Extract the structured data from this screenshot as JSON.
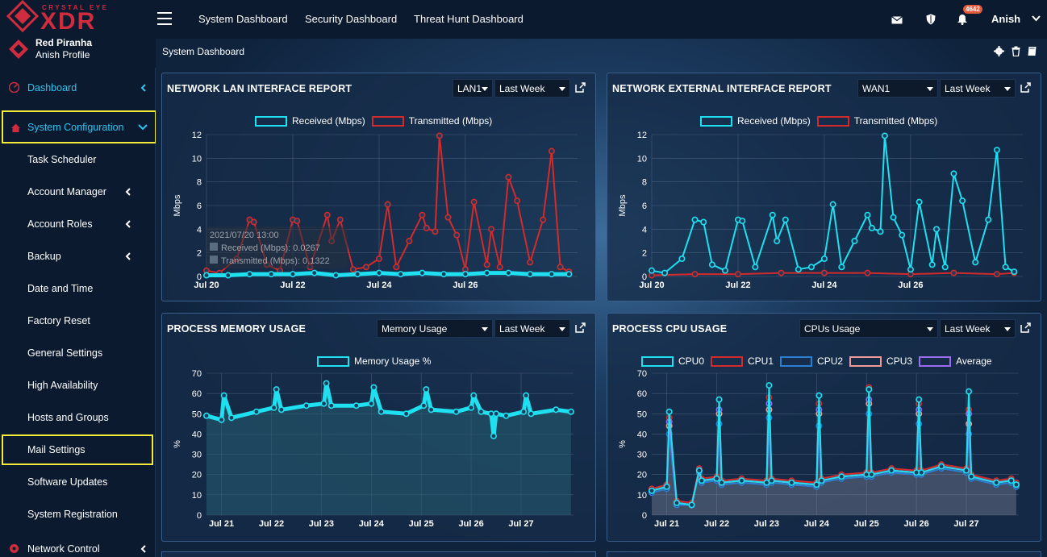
{
  "brand": {
    "tagline": "CRYSTAL EYE",
    "product": "XDR",
    "org": "Red Piranha",
    "profile": "Anish Profile"
  },
  "colors": {
    "accent": "#2fc4f2",
    "brand": "#d12b3e",
    "highlight": "#f3ea3a",
    "received": "#1ee0f0",
    "transmitted": "#d32b2b",
    "memory": "#1ee0f0",
    "cpu0": "#1ee0f0",
    "cpu1": "#d32b2b",
    "cpu2": "#2b7fd3",
    "cpu3": "#f19a9a",
    "average": "#9a6cf0"
  },
  "sidebar": {
    "dashboard": "Dashboard",
    "system_configuration": "System Configuration",
    "items": [
      "Task Scheduler",
      "Account Manager",
      "Account Roles",
      "Backup",
      "Date and Time",
      "Factory Reset",
      "General Settings",
      "High Availability",
      "Hosts and Groups",
      "Mail Settings",
      "Software Updates",
      "System Registration"
    ],
    "network_control": "Network Control"
  },
  "topbar": {
    "links": [
      "System Dashboard",
      "Security Dashboard",
      "Threat Hunt Dashboard"
    ],
    "notifications": "4642",
    "user": "Anish"
  },
  "page": {
    "title": "System Dashboard"
  },
  "panels": {
    "lan": {
      "title": "NETWORK LAN INTERFACE REPORT",
      "iface": "LAN1",
      "range": "Last Week",
      "ylabel": "Mbps",
      "legend": [
        "Received (Mbps)",
        "Transmitted (Mbps)"
      ],
      "tooltip": {
        "time": "2021/07/20 13:00",
        "received": "Received (Mbps): 0.0267",
        "transmitted": "Transmitted (Mbps): 0.1322"
      }
    },
    "ext": {
      "title": "NETWORK EXTERNAL INTERFACE REPORT",
      "iface": "WAN1",
      "range": "Last Week",
      "ylabel": "Mbps",
      "legend": [
        "Received (Mbps)",
        "Transmitted (Mbps)"
      ]
    },
    "mem": {
      "title": "PROCESS MEMORY USAGE",
      "metric": "Memory Usage",
      "range": "Last Week",
      "ylabel": "%",
      "legend": [
        "Memory Usage %"
      ]
    },
    "cpu": {
      "title": "PROCESS CPU USAGE",
      "metric": "CPUs Usage",
      "range": "Last Week",
      "ylabel": "%",
      "legend": [
        "CPU0",
        "CPU1",
        "CPU2",
        "CPU3",
        "Average"
      ]
    }
  },
  "chart_data": [
    {
      "type": "line",
      "title": "NETWORK LAN INTERFACE REPORT",
      "ylabel": "Mbps",
      "ylim": [
        0,
        12
      ],
      "yticks": [
        0,
        2,
        4,
        6,
        8,
        10,
        12
      ],
      "xlim": [
        0,
        8.6
      ],
      "xticks": [
        "Jul 20",
        "Jul 22",
        "Jul 24",
        "Jul 26"
      ],
      "xtick_pos": [
        0,
        2,
        4,
        6
      ],
      "series": [
        {
          "name": "Received (Mbps)",
          "x": [
            0,
            0.5,
            1,
            1.5,
            2,
            2.5,
            3,
            3.5,
            4,
            4.5,
            5,
            5.5,
            6,
            6.5,
            7,
            7.5,
            8,
            8.4
          ],
          "values": [
            0.1,
            0.1,
            0.2,
            0.2,
            0.2,
            0.3,
            0.1,
            0.2,
            0.3,
            0.2,
            0.3,
            0.2,
            0.2,
            0.3,
            0.3,
            0.2,
            0.2,
            0.2
          ]
        },
        {
          "name": "Transmitted (Mbps)",
          "x": [
            0,
            0.3,
            0.7,
            1.0,
            1.1,
            1.4,
            1.7,
            2.0,
            2.1,
            2.4,
            2.8,
            2.9,
            3.1,
            3.4,
            3.7,
            4.0,
            4.2,
            4.4,
            4.7,
            5.0,
            5.1,
            5.3,
            5.4,
            5.6,
            5.8,
            6.0,
            6.2,
            6.5,
            6.6,
            6.8,
            7.0,
            7.2,
            7.5,
            7.8,
            8.0,
            8.2,
            8.4
          ],
          "values": [
            0.5,
            0.3,
            1.5,
            4.8,
            4.6,
            1.0,
            0.5,
            4.8,
            4.7,
            0.8,
            5.2,
            3.0,
            4.8,
            0.6,
            0.8,
            1.5,
            6.1,
            0.8,
            3.0,
            5.2,
            4.1,
            3.8,
            11.9,
            5.0,
            3.5,
            0.6,
            6.3,
            1.0,
            4.0,
            0.8,
            8.4,
            6.4,
            1.2,
            4.8,
            10.6,
            0.8,
            0.4
          ]
        }
      ]
    },
    {
      "type": "line",
      "title": "NETWORK EXTERNAL INTERFACE REPORT",
      "ylabel": "Mbps",
      "ylim": [
        0,
        12
      ],
      "yticks": [
        0,
        2,
        4,
        6,
        8,
        10,
        12
      ],
      "xlim": [
        0,
        8.6
      ],
      "xticks": [
        "Jul 20",
        "Jul 22",
        "Jul 24",
        "Jul 26"
      ],
      "xtick_pos": [
        0,
        2,
        4,
        6
      ],
      "series": [
        {
          "name": "Received (Mbps)",
          "x": [
            0,
            0.3,
            0.7,
            1.0,
            1.2,
            1.4,
            1.7,
            2.0,
            2.1,
            2.4,
            2.8,
            2.9,
            3.1,
            3.4,
            3.7,
            4.0,
            4.2,
            4.4,
            4.7,
            5.0,
            5.1,
            5.3,
            5.4,
            5.6,
            5.8,
            6.0,
            6.2,
            6.5,
            6.6,
            6.8,
            7.0,
            7.2,
            7.5,
            7.8,
            8.0,
            8.2,
            8.4
          ],
          "values": [
            0.5,
            0.3,
            1.5,
            4.8,
            4.6,
            1.0,
            0.5,
            4.8,
            4.7,
            0.8,
            5.2,
            3.0,
            4.8,
            0.6,
            0.8,
            1.5,
            6.1,
            0.8,
            3.0,
            5.2,
            4.1,
            3.8,
            11.9,
            5.0,
            3.5,
            0.6,
            6.3,
            1.0,
            4.0,
            0.8,
            8.7,
            6.4,
            1.2,
            4.8,
            10.7,
            0.8,
            0.4
          ]
        },
        {
          "name": "Transmitted (Mbps)",
          "x": [
            0,
            1,
            2,
            3,
            4,
            5,
            6,
            7,
            8,
            8.4
          ],
          "values": [
            0.1,
            0.2,
            0.2,
            0.3,
            0.3,
            0.3,
            0.2,
            0.3,
            0.2,
            0.3
          ]
        }
      ]
    },
    {
      "type": "line",
      "title": "PROCESS MEMORY USAGE",
      "ylabel": "%",
      "ylim": [
        0,
        70
      ],
      "yticks": [
        0,
        10,
        20,
        30,
        40,
        50,
        60,
        70
      ],
      "xlim": [
        0,
        7.35
      ],
      "xticks": [
        "Jul 21",
        "Jul 22",
        "Jul 23",
        "Jul 24",
        "Jul 25",
        "Jul 26",
        "Jul 27"
      ],
      "xtick_pos": [
        0.3,
        1.3,
        2.3,
        3.3,
        4.3,
        5.3,
        6.3
      ],
      "series": [
        {
          "name": "Memory Usage %",
          "x": [
            0,
            0.3,
            0.35,
            0.5,
            1.0,
            1.35,
            1.4,
            1.5,
            2.0,
            2.35,
            2.4,
            2.5,
            3.0,
            3.3,
            3.35,
            3.5,
            4.0,
            4.35,
            4.4,
            4.5,
            5.0,
            5.3,
            5.35,
            5.5,
            5.7,
            5.75,
            5.8,
            6.0,
            6.35,
            6.4,
            6.5,
            7.0,
            7.3
          ],
          "values": [
            49,
            47,
            59,
            48,
            51,
            53,
            62,
            52,
            54,
            55,
            65,
            54,
            54,
            55,
            63,
            51,
            50,
            54,
            62,
            52,
            51,
            53,
            59,
            51,
            50,
            39,
            50,
            49,
            51,
            59,
            50,
            52,
            51
          ]
        }
      ]
    },
    {
      "type": "line",
      "title": "PROCESS CPU USAGE",
      "ylabel": "%",
      "ylim": [
        0,
        70
      ],
      "yticks": [
        0,
        10,
        20,
        30,
        40,
        50,
        60,
        70
      ],
      "xlim": [
        0,
        7.35
      ],
      "xticks": [
        "Jul 21",
        "Jul 22",
        "Jul 23",
        "Jul 24",
        "Jul 25",
        "Jul 26",
        "Jul 27"
      ],
      "xtick_pos": [
        0.3,
        1.3,
        2.3,
        3.3,
        4.3,
        5.3,
        6.3
      ],
      "series": [
        {
          "name": "CPU0",
          "x": [
            0,
            0.3,
            0.35,
            0.5,
            0.8,
            0.95,
            1.0,
            1.3,
            1.35,
            1.4,
            1.8,
            2.3,
            2.35,
            2.4,
            2.8,
            3.3,
            3.35,
            3.4,
            3.8,
            4.3,
            4.35,
            4.4,
            4.8,
            5.3,
            5.35,
            5.4,
            5.8,
            6.3,
            6.35,
            6.4,
            6.9,
            7.2,
            7.3
          ],
          "values": [
            12,
            14,
            51,
            6,
            5,
            22,
            17,
            18,
            57,
            16,
            17,
            16,
            64,
            17,
            16,
            15,
            59,
            17,
            19,
            20,
            62,
            20,
            22,
            21,
            57,
            21,
            24,
            22,
            61,
            19,
            16,
            17,
            15
          ]
        },
        {
          "name": "CPU1",
          "x": [
            0,
            0.3,
            0.35,
            0.5,
            0.8,
            0.95,
            1.0,
            1.3,
            1.35,
            1.4,
            1.8,
            2.3,
            2.35,
            2.4,
            2.8,
            3.3,
            3.35,
            3.4,
            3.8,
            4.3,
            4.35,
            4.4,
            4.8,
            5.3,
            5.35,
            5.4,
            5.8,
            6.3,
            6.35,
            6.4,
            6.9,
            7.2,
            7.3
          ],
          "values": [
            13,
            15,
            48,
            7,
            6,
            23,
            18,
            19,
            57,
            17,
            18,
            17,
            58,
            18,
            17,
            16,
            55,
            18,
            20,
            21,
            63,
            21,
            23,
            22,
            55,
            22,
            25,
            23,
            52,
            20,
            17,
            18,
            16
          ]
        },
        {
          "name": "CPU2",
          "x": [
            0,
            0.3,
            0.35,
            0.5,
            0.8,
            0.95,
            1.0,
            1.3,
            1.35,
            1.4,
            1.8,
            2.3,
            2.35,
            2.4,
            2.8,
            3.3,
            3.35,
            3.4,
            3.8,
            4.3,
            4.35,
            4.4,
            4.8,
            5.3,
            5.35,
            5.4,
            5.8,
            6.3,
            6.35,
            6.4,
            6.9,
            7.2,
            7.3
          ],
          "values": [
            11,
            13,
            40,
            5,
            5,
            21,
            16,
            17,
            45,
            15,
            16,
            15,
            48,
            16,
            15,
            14,
            44,
            16,
            18,
            19,
            50,
            19,
            21,
            20,
            45,
            20,
            23,
            21,
            40,
            18,
            15,
            16,
            14
          ]
        },
        {
          "name": "CPU3",
          "x": [
            0,
            0.3,
            0.35,
            0.5,
            0.8,
            0.95,
            1.0,
            1.3,
            1.35,
            1.4,
            1.8,
            2.3,
            2.35,
            2.4,
            2.8,
            3.3,
            3.35,
            3.4,
            3.8,
            4.3,
            4.35,
            4.4,
            4.8,
            5.3,
            5.35,
            5.4,
            5.8,
            6.3,
            6.35,
            6.4,
            6.9,
            7.2,
            7.3
          ],
          "values": [
            12,
            14,
            44,
            6,
            5,
            22,
            17,
            18,
            50,
            16,
            17,
            16,
            52,
            17,
            16,
            15,
            50,
            17,
            19,
            20,
            55,
            20,
            22,
            21,
            50,
            21,
            24,
            22,
            45,
            19,
            16,
            17,
            15
          ]
        },
        {
          "name": "Average",
          "x": [
            0,
            0.3,
            0.35,
            0.5,
            0.8,
            0.95,
            1.0,
            1.3,
            1.35,
            1.4,
            1.8,
            2.3,
            2.35,
            2.4,
            2.8,
            3.3,
            3.35,
            3.4,
            3.8,
            4.3,
            4.35,
            4.4,
            4.8,
            5.3,
            5.35,
            5.4,
            5.8,
            6.3,
            6.35,
            6.4,
            6.9,
            7.2,
            7.3
          ],
          "values": [
            12,
            14,
            46,
            6,
            5,
            22,
            17,
            18,
            52,
            16,
            17,
            16,
            55,
            17,
            16,
            15,
            52,
            17,
            19,
            20,
            57,
            20,
            22,
            21,
            52,
            21,
            24,
            22,
            50,
            19,
            16,
            17,
            15
          ]
        }
      ]
    }
  ]
}
